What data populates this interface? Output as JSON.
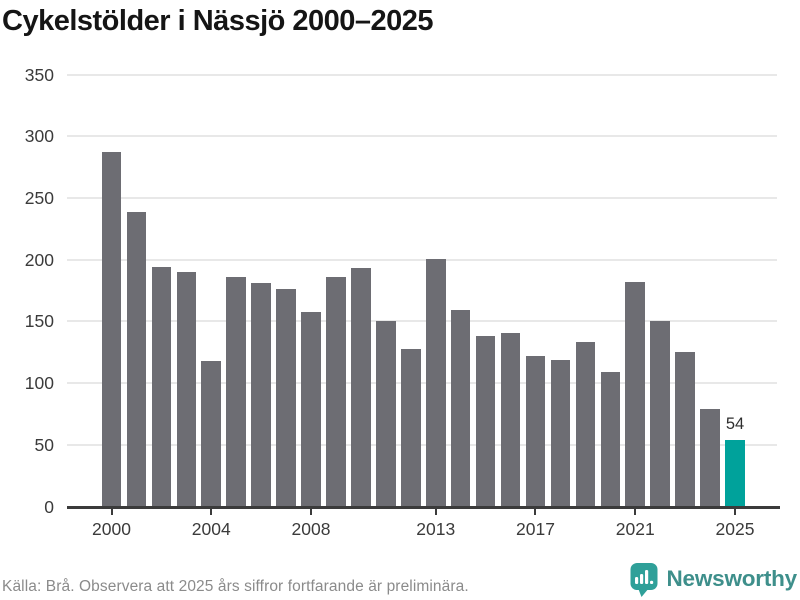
{
  "title": "Cykelstölder i Nässjö 2000–2025",
  "chart_data": {
    "type": "bar",
    "title": "Cykelstölder i Nässjö 2000–2025",
    "categories": [
      2000,
      2001,
      2002,
      2003,
      2004,
      2005,
      2006,
      2007,
      2008,
      2009,
      2010,
      2011,
      2012,
      2013,
      2014,
      2015,
      2016,
      2017,
      2018,
      2019,
      2020,
      2021,
      2022,
      2023,
      2024,
      2025
    ],
    "values": [
      287,
      239,
      194,
      190,
      118,
      186,
      181,
      176,
      158,
      186,
      193,
      150,
      128,
      201,
      159,
      138,
      141,
      122,
      119,
      133,
      109,
      182,
      150,
      125,
      79,
      54
    ],
    "xlabel": "",
    "ylabel": "",
    "ylim": [
      0,
      350
    ],
    "yticks": [
      0,
      50,
      100,
      150,
      200,
      250,
      300,
      350
    ],
    "xtick_labels": [
      "2000",
      "2004",
      "2008",
      "2013",
      "2017",
      "2021",
      "2025"
    ],
    "grid": "horizontal",
    "legend": "none",
    "highlight": {
      "category": 2025,
      "value": 54,
      "value_label": "54"
    },
    "colors": {
      "bar": "#6D6D73",
      "highlight_bar": "#00A29B",
      "grid": "#E8E8E8",
      "axis": "#3B3B3B"
    }
  },
  "footer": {
    "source": "Källa: Brå. Observera att 2025 års siffror fortfarande är preliminära.",
    "brand": "Newsworthy",
    "brand_color": "#3E8F8B",
    "icon_color": "#2FA099",
    "icon": "newsworthy-speech-bubble-barchart-icon"
  }
}
